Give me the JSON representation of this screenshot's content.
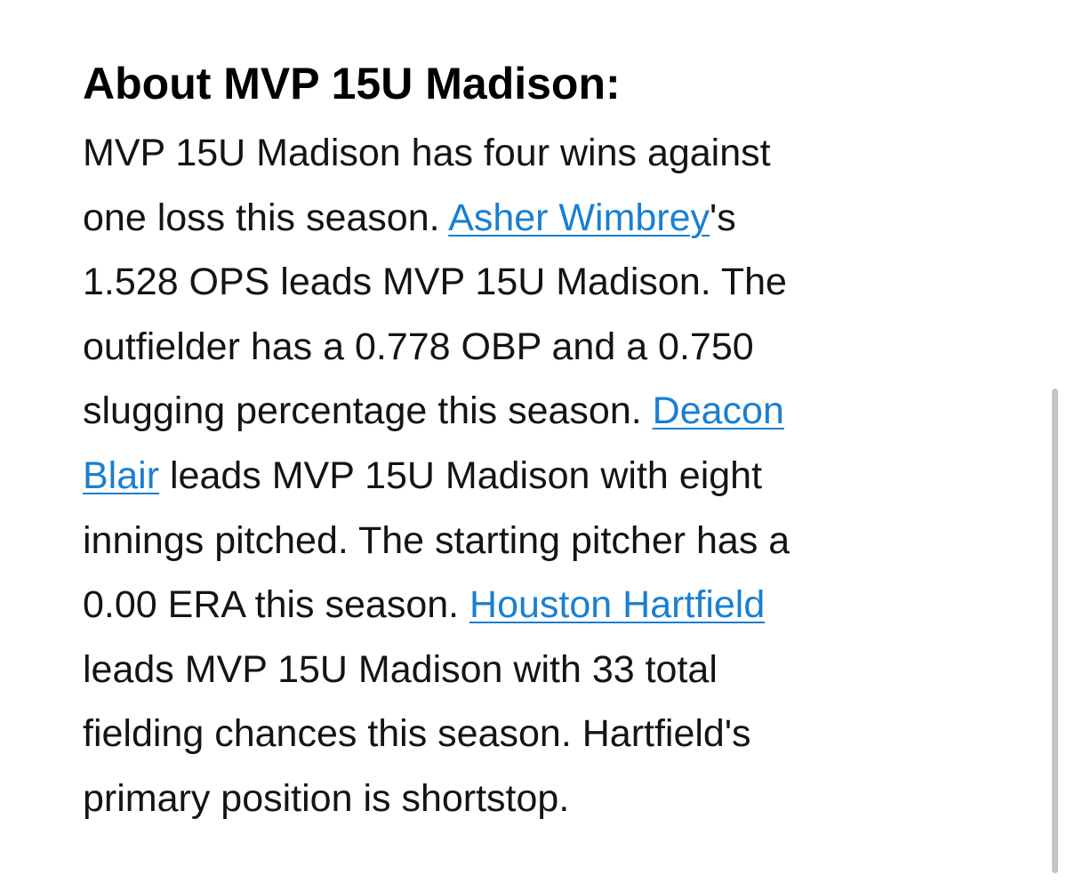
{
  "article": {
    "heading": "About MVP 15U Madison:",
    "lines": [
      {
        "t": "MVP 15U Madison has four wins against"
      },
      {
        "a": "one loss this season. ",
        "link": "Asher Wimbrey",
        "b": "'s"
      },
      {
        "t": "1.528 OPS leads MVP 15U Madison. The"
      },
      {
        "t": "outfielder has a 0.778 OBP and a 0.750"
      },
      {
        "a": "slugging percentage this season. ",
        "link": "Deacon"
      },
      {
        "link": "Blair",
        "b": " leads MVP 15U Madison with eight"
      },
      {
        "t": "innings pitched. The starting pitcher has a"
      },
      {
        "a": "0.00 ERA this season. ",
        "link": "Houston Hartfield"
      },
      {
        "t": "leads MVP 15U Madison with 33 total"
      },
      {
        "t": "fielding chances this season. Hartfield's"
      },
      {
        "t": "primary position is shortstop."
      }
    ]
  },
  "colors": {
    "link": "#1a7fd1",
    "text": "#141414",
    "scrollbar": "#c4c4c4"
  }
}
